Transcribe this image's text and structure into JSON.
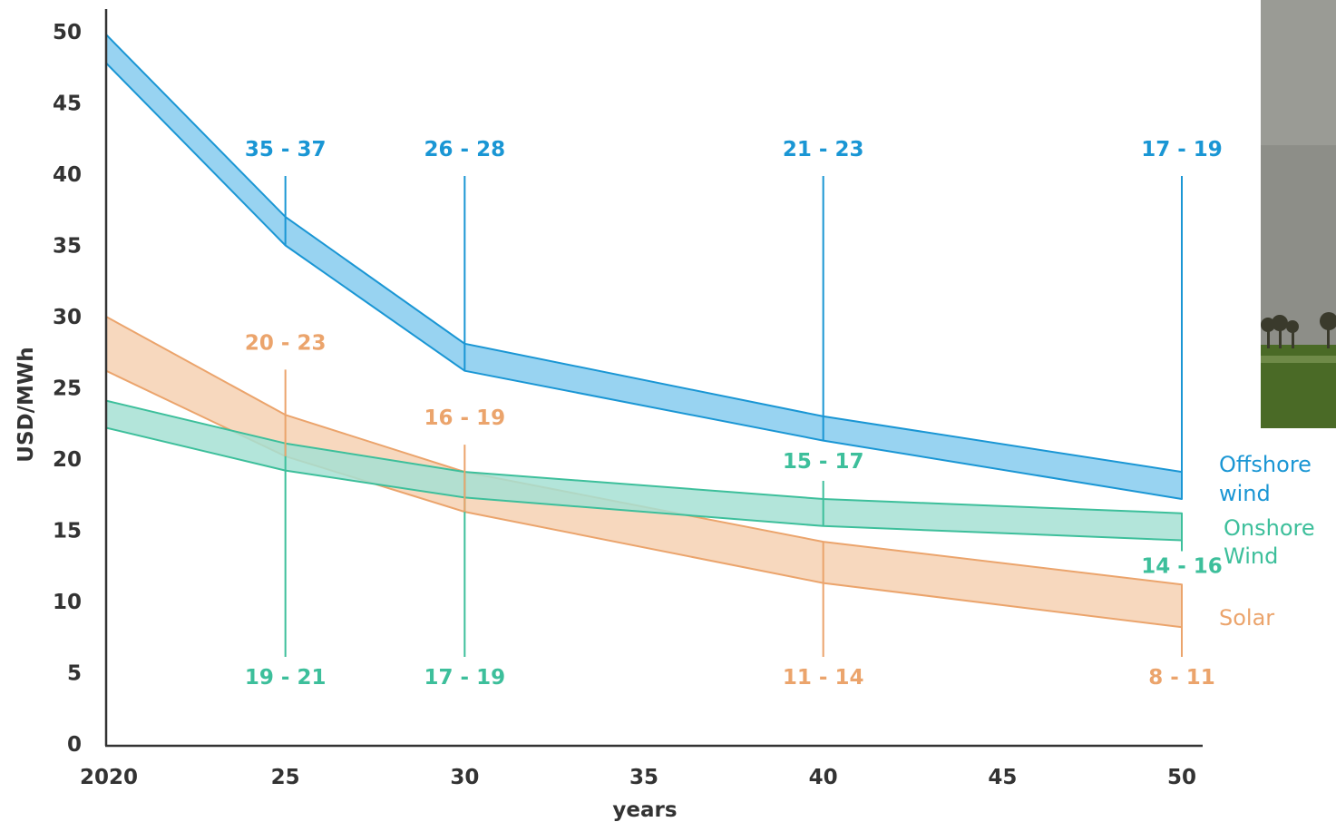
{
  "chart_data": {
    "type": "area",
    "title": "",
    "xlabel": "years",
    "ylabel": "USD/MWh",
    "x_tick_labels": [
      "2020",
      "25",
      "30",
      "35",
      "40",
      "45",
      "50"
    ],
    "y_tick_labels": [
      "0",
      "5",
      "10",
      "15",
      "20",
      "25",
      "30",
      "35",
      "40",
      "45",
      "50"
    ],
    "xlim": [
      2020,
      2050
    ],
    "ylim": [
      0,
      50
    ],
    "grid": false,
    "legend_placement": "right",
    "series": [
      {
        "name": "Offshore wind",
        "color": "#1a96d4",
        "fill": "#86cbee",
        "x": [
          2020,
          2025,
          2030,
          2040,
          2050
        ],
        "low": [
          47.8,
          35.0,
          26.2,
          21.3,
          17.2
        ],
        "high": [
          49.8,
          37.0,
          28.1,
          23.0,
          19.1
        ],
        "range_labels": [
          {
            "x": 2025,
            "text": "35 - 37",
            "position": "above"
          },
          {
            "x": 2030,
            "text": "26 - 28",
            "position": "above"
          },
          {
            "x": 2040,
            "text": "21 - 23",
            "position": "above"
          },
          {
            "x": 2050,
            "text": "17 - 19",
            "position": "above"
          }
        ]
      },
      {
        "name": "Onshore Wind",
        "color": "#3dbf9b",
        "fill": "#a6e1d3",
        "x": [
          2020,
          2025,
          2030,
          2040,
          2050
        ],
        "low": [
          22.2,
          19.2,
          17.3,
          15.3,
          14.3
        ],
        "high": [
          24.1,
          21.1,
          19.1,
          17.2,
          16.2
        ],
        "range_labels": [
          {
            "x": 2025,
            "text": "19 - 21",
            "position": "below"
          },
          {
            "x": 2030,
            "text": "17 - 19",
            "position": "below"
          },
          {
            "x": 2040,
            "text": "15 - 17",
            "position": "above"
          },
          {
            "x": 2050,
            "text": "14 - 16",
            "position": "below"
          }
        ]
      },
      {
        "name": "Solar",
        "color": "#eba46c",
        "fill": "#f6d1b3",
        "x": [
          2020,
          2025,
          2030,
          2040,
          2050
        ],
        "low": [
          26.2,
          20.2,
          16.3,
          11.3,
          8.2
        ],
        "high": [
          30.0,
          23.1,
          19.1,
          14.2,
          11.2
        ],
        "range_labels": [
          {
            "x": 2025,
            "text": "20 - 23",
            "position": "above"
          },
          {
            "x": 2030,
            "text": "16 - 19",
            "position": "above"
          },
          {
            "x": 2040,
            "text": "11 - 14",
            "position": "below"
          },
          {
            "x": 2050,
            "text": "8 - 11",
            "position": "below"
          }
        ]
      }
    ]
  },
  "legend": {
    "offshore": [
      "Offshore",
      "wind"
    ],
    "onshore": [
      "Onshore",
      "Wind"
    ],
    "solar": [
      "Solar"
    ]
  },
  "photo": {
    "colors": {
      "sky": "#8d8e88",
      "field": "#4a6a26",
      "trees": "#3a3a2c"
    }
  }
}
